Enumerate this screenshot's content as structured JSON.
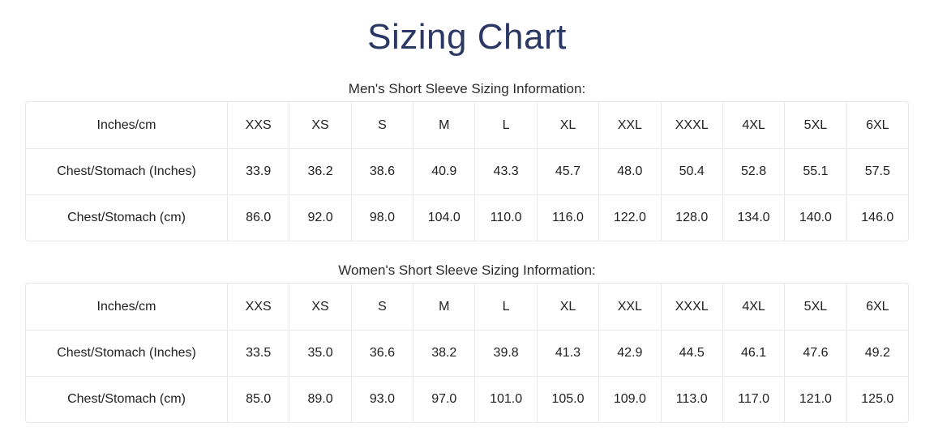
{
  "page": {
    "title": "Sizing Chart"
  },
  "colors": {
    "title_navy": "#2b3865",
    "table_border": "#e9e9e9",
    "body_text": "#212121",
    "background": "#ffffff"
  },
  "sections": [
    {
      "id": "mens",
      "heading": "Men's Short Sleeve Sizing Information:",
      "table": {
        "header": [
          "Inches/cm",
          "XXS",
          "XS",
          "S",
          "M",
          "L",
          "XL",
          "XXL",
          "XXXL",
          "4XL",
          "5XL",
          "6XL"
        ],
        "rows": [
          {
            "label": "Chest/Stomach (Inches)",
            "values": [
              "33.9",
              "36.2",
              "38.6",
              "40.9",
              "43.3",
              "45.7",
              "48.0",
              "50.4",
              "52.8",
              "55.1",
              "57.5"
            ]
          },
          {
            "label": "Chest/Stomach (cm)",
            "values": [
              "86.0",
              "92.0",
              "98.0",
              "104.0",
              "110.0",
              "116.0",
              "122.0",
              "128.0",
              "134.0",
              "140.0",
              "146.0"
            ]
          }
        ]
      }
    },
    {
      "id": "womens",
      "heading": "Women's Short Sleeve Sizing Information:",
      "table": {
        "header": [
          "Inches/cm",
          "XXS",
          "XS",
          "S",
          "M",
          "L",
          "XL",
          "XXL",
          "XXXL",
          "4XL",
          "5XL",
          "6XL"
        ],
        "rows": [
          {
            "label": "Chest/Stomach (Inches)",
            "values": [
              "33.5",
              "35.0",
              "36.6",
              "38.2",
              "39.8",
              "41.3",
              "42.9",
              "44.5",
              "46.1",
              "47.6",
              "49.2"
            ]
          },
          {
            "label": "Chest/Stomach (cm)",
            "values": [
              "85.0",
              "89.0",
              "93.0",
              "97.0",
              "101.0",
              "105.0",
              "109.0",
              "113.0",
              "117.0",
              "121.0",
              "125.0"
            ]
          }
        ]
      }
    }
  ]
}
